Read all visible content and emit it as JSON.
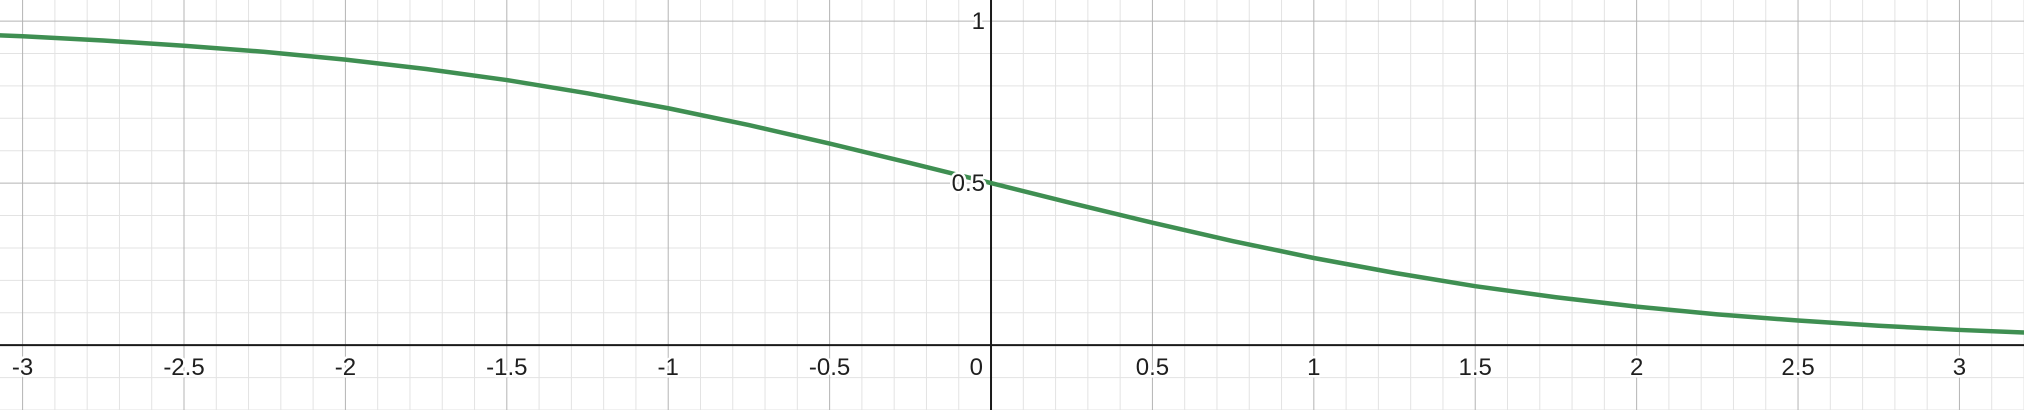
{
  "chart_data": {
    "type": "line",
    "title": "",
    "xlabel": "",
    "ylabel": "",
    "xlim": [
      -3.07,
      3.2
    ],
    "ylim": [
      -0.2,
      1.065
    ],
    "grid": true,
    "x_ticks": [
      {
        "value": -3,
        "label": "-3"
      },
      {
        "value": -2.5,
        "label": "-2.5"
      },
      {
        "value": -2,
        "label": "-2"
      },
      {
        "value": -1.5,
        "label": "-1.5"
      },
      {
        "value": -1,
        "label": "-1"
      },
      {
        "value": -0.5,
        "label": "-0.5"
      },
      {
        "value": 0,
        "label": "0"
      },
      {
        "value": 0.5,
        "label": "0.5"
      },
      {
        "value": 1,
        "label": "1"
      },
      {
        "value": 1.5,
        "label": "1.5"
      },
      {
        "value": 2,
        "label": "2"
      },
      {
        "value": 2.5,
        "label": "2.5"
      },
      {
        "value": 3,
        "label": "3"
      }
    ],
    "y_ticks": [
      {
        "value": 0.5,
        "label": "0.5"
      },
      {
        "value": 1,
        "label": "1"
      }
    ],
    "series": [
      {
        "color": "#3f8f52",
        "x": [
          -3.07,
          -3.0,
          -2.75,
          -2.5,
          -2.25,
          -2.0,
          -1.75,
          -1.5,
          -1.25,
          -1.0,
          -0.75,
          -0.5,
          -0.25,
          0.0,
          0.25,
          0.5,
          0.75,
          1.0,
          1.25,
          1.5,
          1.75,
          2.0,
          2.25,
          2.5,
          2.75,
          3.0,
          3.2
        ],
        "y": [
          0.956,
          0.953,
          0.94,
          0.924,
          0.905,
          0.881,
          0.852,
          0.818,
          0.777,
          0.731,
          0.679,
          0.622,
          0.562,
          0.5,
          0.438,
          0.378,
          0.321,
          0.269,
          0.223,
          0.182,
          0.148,
          0.119,
          0.095,
          0.076,
          0.06,
          0.047,
          0.039
        ]
      }
    ]
  }
}
